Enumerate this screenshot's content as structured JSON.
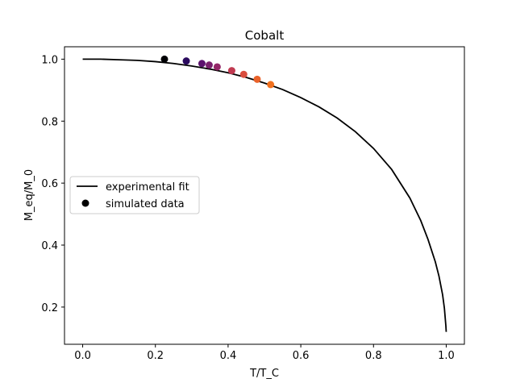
{
  "chart_data": {
    "type": "line",
    "title": "Cobalt",
    "xlabel": "T/T_C",
    "ylabel": "M_eq/M_0",
    "xlim": [
      -0.05,
      1.05
    ],
    "ylim": [
      0.08,
      1.04
    ],
    "xticks": [
      0.0,
      0.2,
      0.4,
      0.6,
      0.8,
      1.0
    ],
    "yticks": [
      0.2,
      0.4,
      0.6,
      0.8,
      1.0
    ],
    "xtick_labels": [
      "0.0",
      "0.2",
      "0.4",
      "0.6",
      "0.8",
      "1.0"
    ],
    "ytick_labels": [
      "0.2",
      "0.4",
      "0.6",
      "0.8",
      "1.0"
    ],
    "grid": false,
    "legend_position": "center-left",
    "series": [
      {
        "name": "experimental fit",
        "kind": "line",
        "color": "#000000",
        "x": [
          0.0,
          0.05,
          0.1,
          0.15,
          0.2,
          0.25,
          0.3,
          0.35,
          0.4,
          0.45,
          0.5,
          0.55,
          0.6,
          0.65,
          0.7,
          0.75,
          0.8,
          0.85,
          0.9,
          0.93,
          0.95,
          0.97,
          0.98,
          0.99,
          0.995,
          0.999,
          1.0
        ],
        "y": [
          1.0,
          1.0,
          0.998,
          0.996,
          0.992,
          0.986,
          0.978,
          0.968,
          0.956,
          0.941,
          0.923,
          0.902,
          0.876,
          0.846,
          0.81,
          0.766,
          0.712,
          0.644,
          0.552,
          0.479,
          0.418,
          0.346,
          0.3,
          0.24,
          0.196,
          0.14,
          0.12
        ]
      },
      {
        "name": "simulated data",
        "kind": "scatter",
        "color": "#000000",
        "x": [
          0.225,
          0.285,
          0.328,
          0.348,
          0.37,
          0.41,
          0.443,
          0.48,
          0.517
        ],
        "y": [
          1.0,
          0.994,
          0.986,
          0.981,
          0.975,
          0.963,
          0.951,
          0.935,
          0.918
        ],
        "point_colors": [
          "#000004",
          "#2a0a5e",
          "#5c126e",
          "#78206c",
          "#932667",
          "#c03a51",
          "#d94d3e",
          "#e9622a",
          "#f1711f"
        ]
      }
    ]
  }
}
